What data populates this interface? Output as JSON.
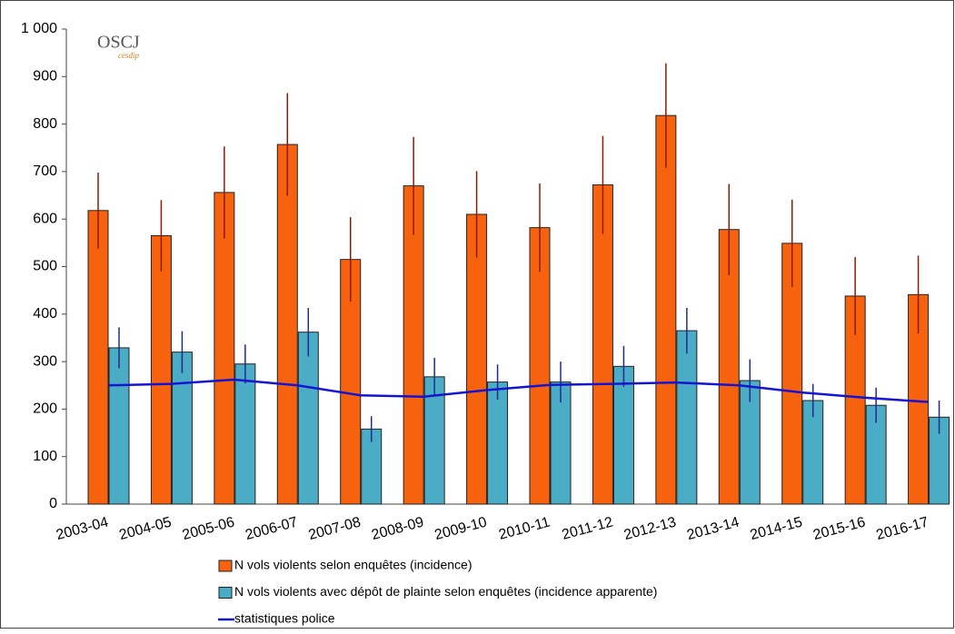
{
  "chart_data": {
    "type": "bar",
    "logo": "OSCJ",
    "logo_subtitle": "cesdip",
    "categories": [
      "2003-04",
      "2004-05",
      "2005-06",
      "2006-07",
      "2007-08",
      "2008-09",
      "2009-10",
      "2010-11",
      "2011-12",
      "2012-13",
      "2013-14",
      "2014-15",
      "2015-16",
      "2016-17"
    ],
    "series": [
      {
        "name": "N vols violents selon enquêtes (incidence)",
        "color": "#f7620f",
        "error_color": "#8b1a00",
        "values": [
          618,
          565,
          656,
          757,
          515,
          670,
          610,
          582,
          672,
          818,
          578,
          549,
          438,
          441
        ],
        "errors": [
          80,
          75,
          97,
          108,
          89,
          103,
          91,
          93,
          103,
          110,
          96,
          92,
          82,
          82
        ]
      },
      {
        "name": "N vols violents avec dépôt de plainte selon enquêtes (incidence apparente)",
        "color": "#4bacc6",
        "error_color": "#1f2a8f",
        "values": [
          329,
          320,
          295,
          362,
          158,
          268,
          257,
          257,
          290,
          365,
          260,
          218,
          208,
          183
        ],
        "errors": [
          43,
          44,
          41,
          51,
          27,
          40,
          37,
          43,
          43,
          48,
          45,
          35,
          37,
          35
        ]
      },
      {
        "name": "statistiques police",
        "color": "#1414d2",
        "type": "line",
        "values": [
          250,
          253,
          262,
          250,
          229,
          226,
          240,
          251,
          253,
          256,
          250,
          235,
          224,
          215
        ]
      }
    ],
    "ylim": [
      0,
      1000
    ],
    "yticks": [
      0,
      100,
      200,
      300,
      400,
      500,
      600,
      700,
      800,
      900,
      {
        "value": 1000,
        "label": "1 000"
      }
    ],
    "grid": false,
    "legend": "bottom"
  }
}
